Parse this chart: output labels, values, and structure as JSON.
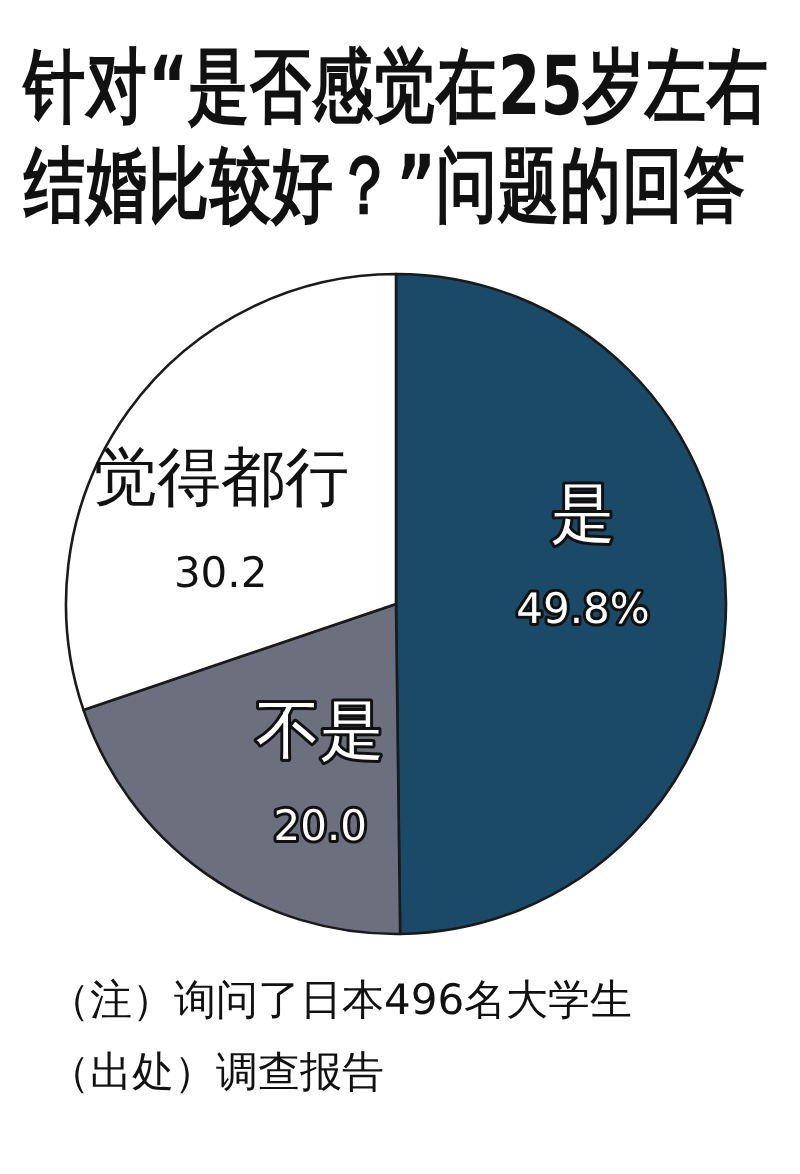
{
  "chart_data": {
    "type": "pie",
    "title": "针对“是否感觉在25岁左右结婚比较好？”问题的回答",
    "categories": [
      "是",
      "不是",
      "觉得都行"
    ],
    "values": [
      49.8,
      20.0,
      30.2
    ],
    "colors": [
      "#1b4a68",
      "#6b6f7e",
      "#ffffff"
    ],
    "value_labels": [
      "49.8%",
      "20.0",
      "30.2"
    ],
    "annotations": [
      "（注）询问了日本496名大学生",
      "（出处）调查报告"
    ]
  }
}
